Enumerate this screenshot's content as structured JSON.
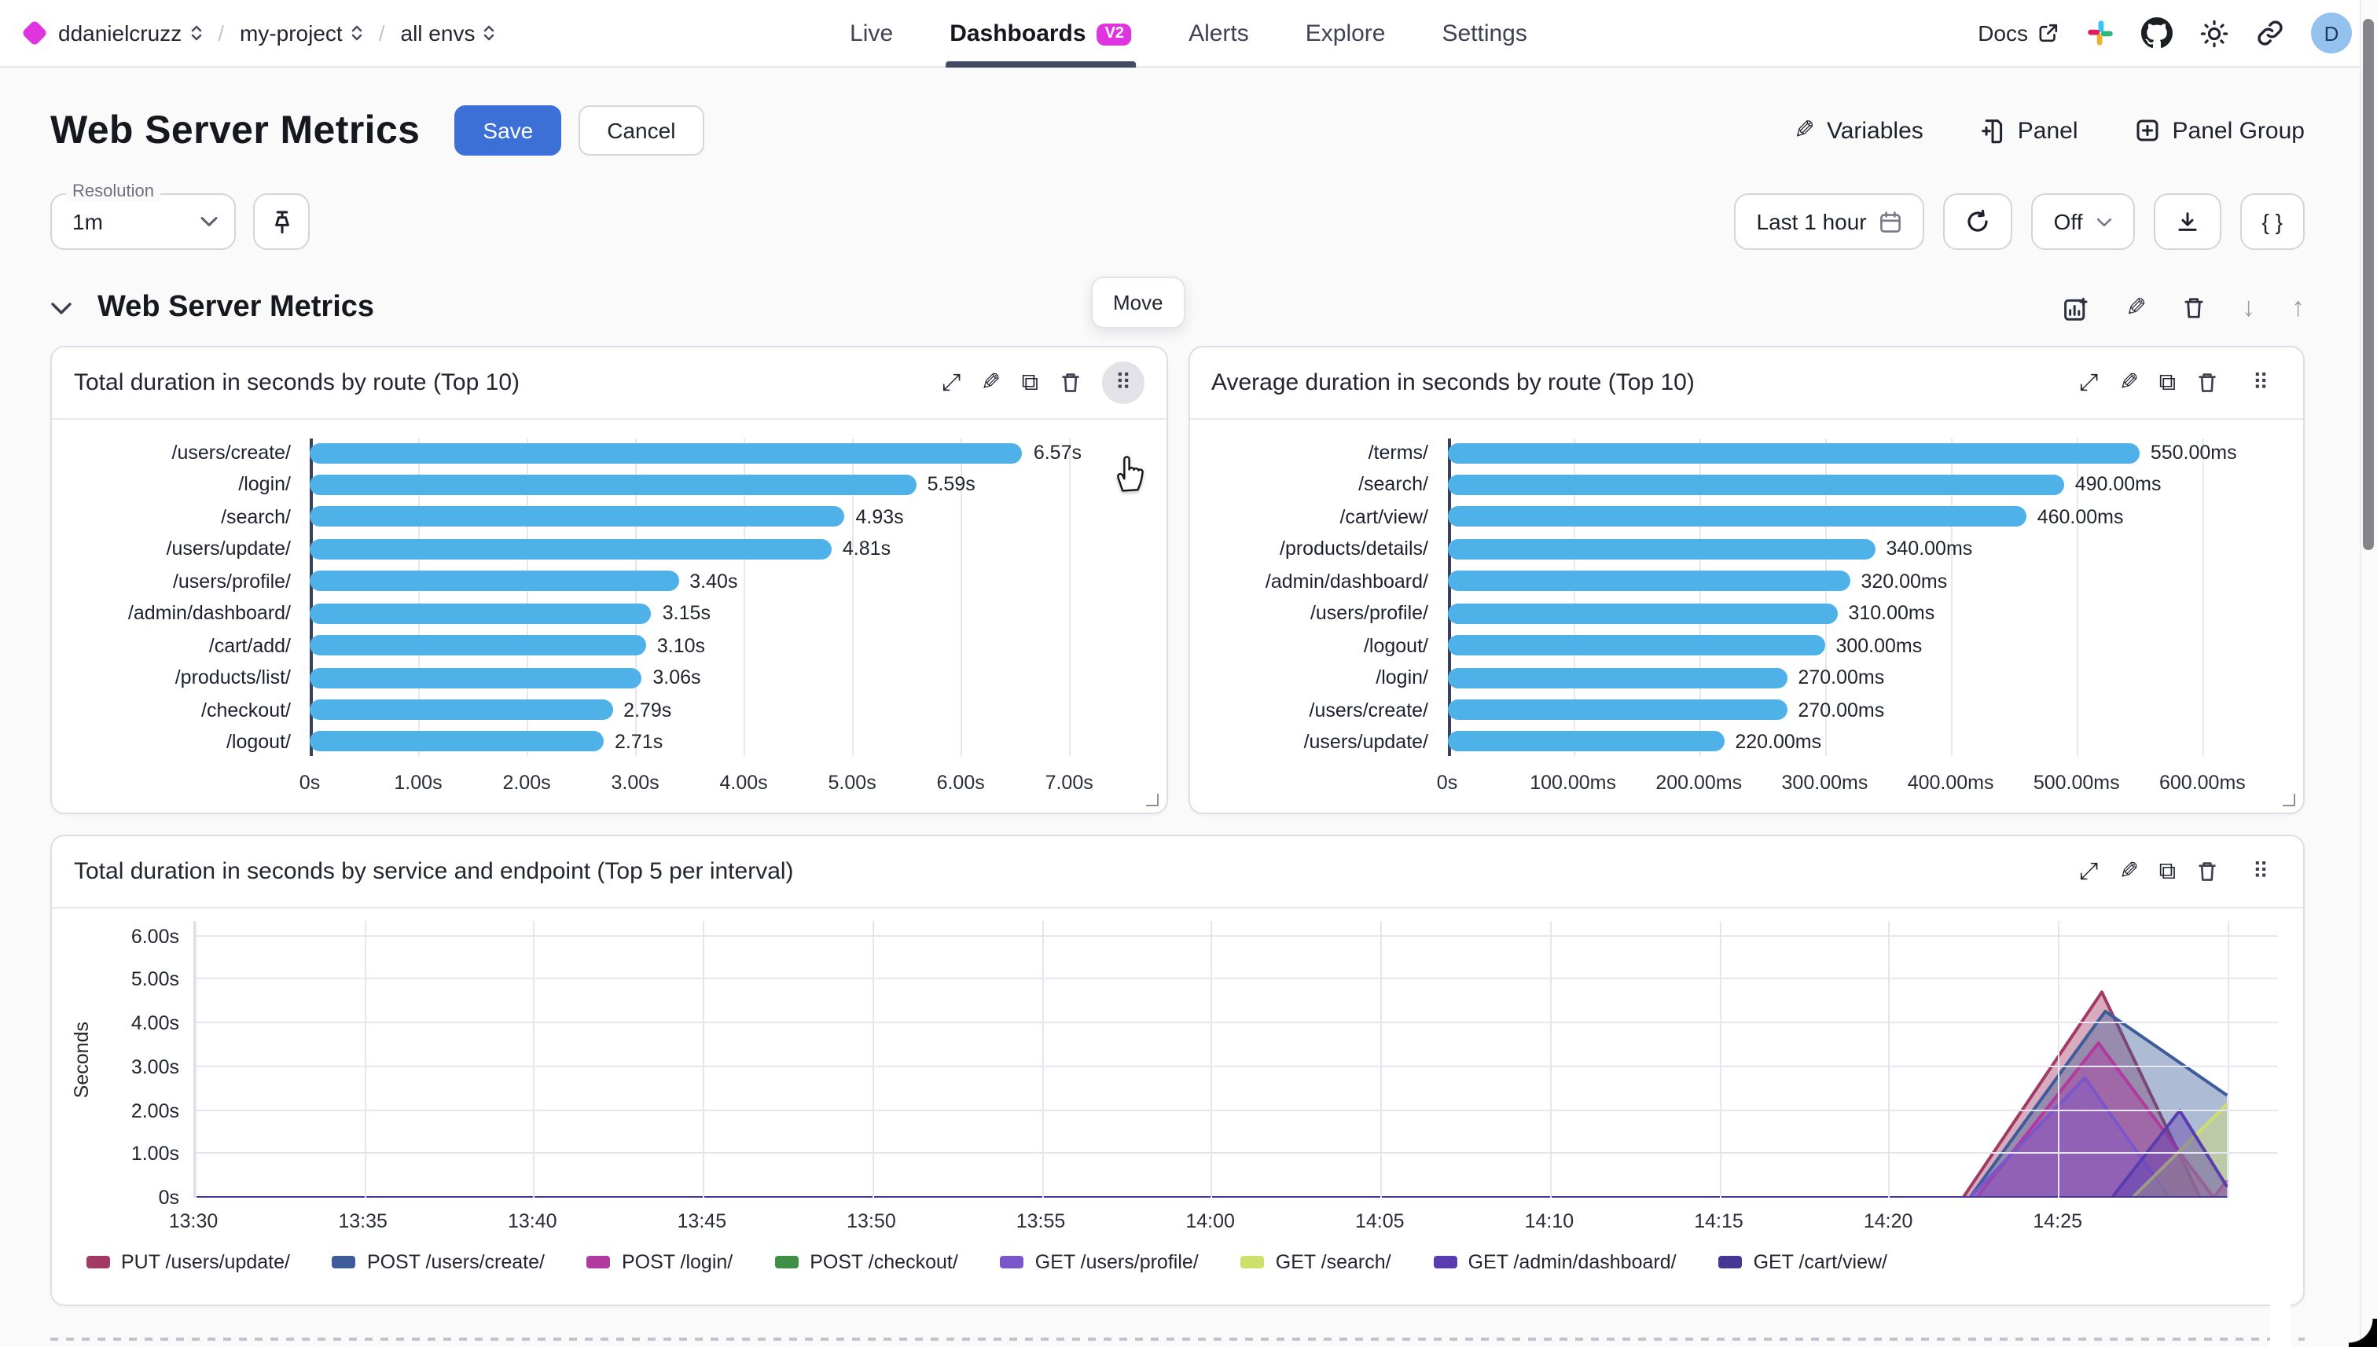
{
  "header": {
    "breadcrumb": {
      "org": "ddanielcruzz",
      "project": "my-project",
      "env": "all envs",
      "separator": "/"
    },
    "nav": {
      "live": "Live",
      "dashboards": "Dashboards",
      "badge": "V2",
      "alerts": "Alerts",
      "explore": "Explore",
      "settings": "Settings"
    },
    "right": {
      "docs": "Docs",
      "avatar_initial": "D"
    }
  },
  "toolbar": {
    "title": "Web Server Metrics",
    "save_label": "Save",
    "cancel_label": "Cancel",
    "variables_label": "Variables",
    "panel_label": "Panel",
    "panel_group_label": "Panel Group"
  },
  "filters": {
    "resolution_label": "Resolution",
    "resolution_value": "1m",
    "time_range": "Last 1 hour",
    "auto_refresh": "Off"
  },
  "section": {
    "title": "Web Server Metrics",
    "move_tooltip": "Move"
  },
  "colors": {
    "accent_magenta": "#de35de",
    "save_blue": "#3d70d7",
    "bar_blue": "#4eb1e8",
    "tab_underline": "#3e4b63"
  },
  "chart_data": [
    {
      "type": "bar",
      "orientation": "horizontal",
      "title": "Total duration in seconds by route (Top 10)",
      "categories": [
        "/users/create/",
        "/login/",
        "/search/",
        "/users/update/",
        "/users/profile/",
        "/admin/dashboard/",
        "/cart/add/",
        "/products/list/",
        "/checkout/",
        "/logout/"
      ],
      "values": [
        6.57,
        5.59,
        4.93,
        4.81,
        3.4,
        3.15,
        3.1,
        3.06,
        2.79,
        2.71
      ],
      "value_labels": [
        "6.57s",
        "5.59s",
        "4.93s",
        "4.81s",
        "3.40s",
        "3.15s",
        "3.10s",
        "3.06s",
        "2.79s",
        "2.71s"
      ],
      "tick_values": [
        0,
        1,
        2,
        3,
        4,
        5,
        6,
        7
      ],
      "tick_labels": [
        "0s",
        "1.00s",
        "2.00s",
        "3.00s",
        "4.00s",
        "5.00s",
        "6.00s",
        "7.00s"
      ],
      "xmax": 7.6,
      "bar_color": "#4eb1e8"
    },
    {
      "type": "bar",
      "orientation": "horizontal",
      "title": "Average duration in seconds by route (Top 10)",
      "categories": [
        "/terms/",
        "/search/",
        "/cart/view/",
        "/products/details/",
        "/admin/dashboard/",
        "/users/profile/",
        "/logout/",
        "/login/",
        "/users/create/",
        "/users/update/"
      ],
      "values": [
        550,
        490,
        460,
        340,
        320,
        310,
        300,
        270,
        270,
        220
      ],
      "value_labels": [
        "550.00ms",
        "490.00ms",
        "460.00ms",
        "340.00ms",
        "320.00ms",
        "310.00ms",
        "300.00ms",
        "270.00ms",
        "270.00ms",
        "220.00ms"
      ],
      "tick_values": [
        0,
        100,
        200,
        300,
        400,
        500,
        600
      ],
      "tick_labels": [
        "0s",
        "100.00ms",
        "200.00ms",
        "300.00ms",
        "400.00ms",
        "500.00ms",
        "600.00ms"
      ],
      "xmax": 655,
      "bar_color": "#4eb1e8"
    },
    {
      "type": "area",
      "title": "Total duration in seconds by service and endpoint (Top 5 per interval)",
      "ylabel": "Seconds",
      "y_tick_values": [
        0,
        1,
        2,
        3,
        4,
        5,
        6
      ],
      "y_tick_labels": [
        "0s",
        "1.00s",
        "2.00s",
        "3.00s",
        "4.00s",
        "5.00s",
        "6.00s"
      ],
      "y_max": 6.35,
      "x_tick_minutes": [
        0,
        5,
        10,
        15,
        20,
        25,
        30,
        35,
        40,
        45,
        50,
        55
      ],
      "x_tick_labels": [
        "13:30",
        "13:35",
        "13:40",
        "13:45",
        "13:50",
        "13:55",
        "14:00",
        "14:05",
        "14:10",
        "14:15",
        "14:20",
        "14:25"
      ],
      "x_grid_minutes": [
        0,
        5,
        10,
        15,
        20,
        25,
        30,
        35,
        40,
        45,
        50,
        55,
        60
      ],
      "x_max_minutes": 61.5,
      "series": [
        {
          "name": "PUT /users/update/",
          "color": "#a23a64",
          "points": [
            [
              0,
              0
            ],
            [
              52.2,
              0
            ],
            [
              56.3,
              4.72
            ],
            [
              59.2,
              0
            ],
            [
              60,
              0
            ]
          ]
        },
        {
          "name": "POST /users/create/",
          "color": "#3d5c99",
          "points": [
            [
              0,
              0
            ],
            [
              52.4,
              0
            ],
            [
              56.4,
              4.28
            ],
            [
              60,
              2.35
            ]
          ]
        },
        {
          "name": "POST /login/",
          "color": "#b03a9e",
          "points": [
            [
              0,
              0
            ],
            [
              52.6,
              0
            ],
            [
              56.2,
              3.55
            ],
            [
              59.6,
              0
            ],
            [
              60,
              0.4
            ]
          ]
        },
        {
          "name": "POST /checkout/",
          "color": "#3f8f44",
          "points": [
            [
              0,
              0
            ],
            [
              60,
              0
            ]
          ]
        },
        {
          "name": "GET /users/profile/",
          "color": "#7a57c9",
          "points": [
            [
              0,
              0
            ],
            [
              52.4,
              0
            ],
            [
              55.8,
              2.75
            ],
            [
              58.3,
              0
            ],
            [
              60,
              0
            ]
          ]
        },
        {
          "name": "GET /search/",
          "color": "#cfe06a",
          "points": [
            [
              0,
              0
            ],
            [
              57.2,
              0
            ],
            [
              60,
              2.15
            ]
          ]
        },
        {
          "name": "GET /admin/dashboard/",
          "color": "#5a3cae",
          "points": [
            [
              0,
              0
            ],
            [
              56.6,
              0
            ],
            [
              58.6,
              2.0
            ],
            [
              60,
              0.25
            ]
          ]
        },
        {
          "name": "GET /cart/view/",
          "color": "#463795",
          "points": [
            [
              0,
              0
            ],
            [
              60,
              0
            ]
          ]
        }
      ]
    }
  ]
}
